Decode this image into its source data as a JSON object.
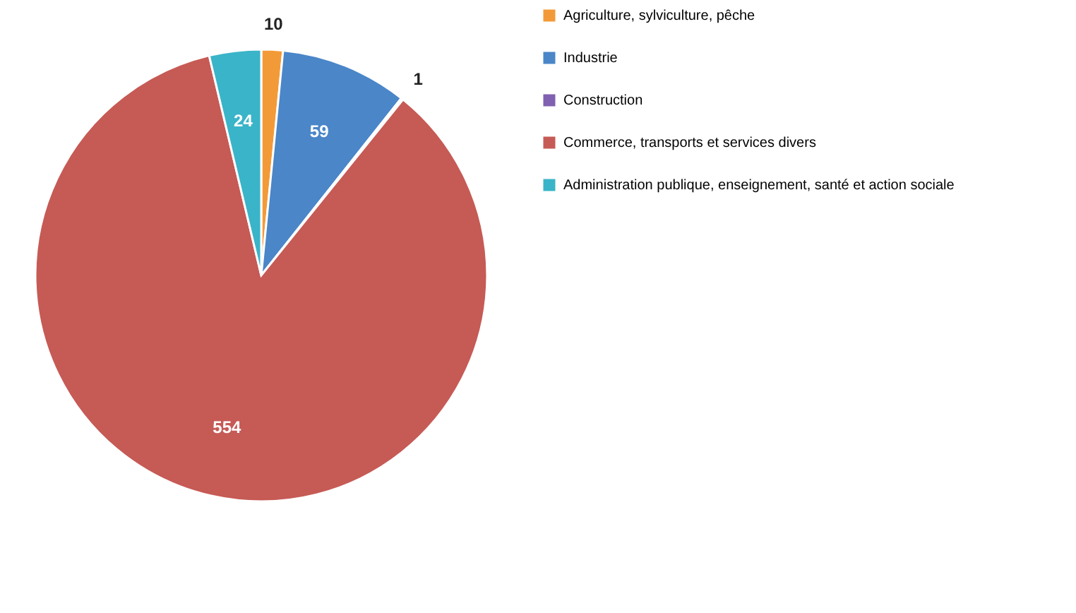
{
  "chart_data": {
    "type": "pie",
    "categories": [
      "Agriculture, sylviculture, pêche",
      "Industrie",
      "Construction",
      "Commerce, transports et services divers",
      "Administration publique, enseignement, santé et action sociale"
    ],
    "values": [
      10,
      59,
      1,
      554,
      24
    ],
    "colors": [
      "#f39a38",
      "#4a86c8",
      "#8060b0",
      "#c65a55",
      "#3ab4c8"
    ],
    "data_labels": true,
    "legend": "right"
  }
}
